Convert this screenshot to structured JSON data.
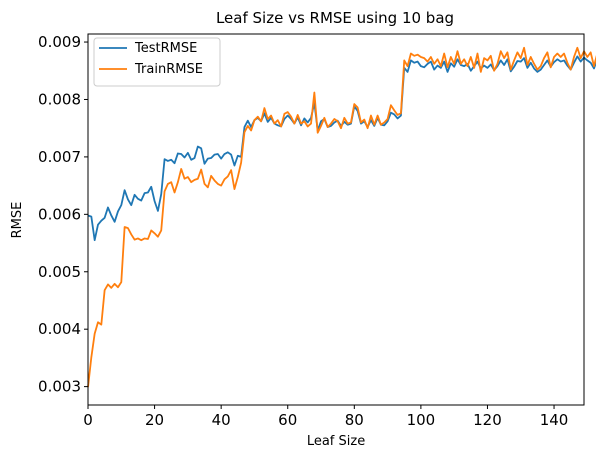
{
  "chart_data": {
    "type": "line",
    "title": "Leaf Size vs RMSE using 10 bag",
    "xlabel": "Leaf Size",
    "ylabel": "RMSE",
    "xlim": [
      0,
      149
    ],
    "ylim": [
      0.00268,
      0.00914
    ],
    "xticks": [
      0,
      20,
      40,
      60,
      80,
      100,
      120,
      140
    ],
    "yticks": [
      0.003,
      0.004,
      0.005,
      0.006,
      0.007,
      0.008,
      0.009
    ],
    "ytick_labels": [
      "0.003",
      "0.004",
      "0.005",
      "0.006",
      "0.007",
      "0.008",
      "0.009"
    ],
    "legend_position": "upper-left",
    "grid": false,
    "series": [
      {
        "name": "TestRMSE",
        "color": "#1f77b4",
        "values": [
          0.00598,
          0.00596,
          0.00555,
          0.00582,
          0.00589,
          0.00594,
          0.00612,
          0.00598,
          0.00587,
          0.00605,
          0.00616,
          0.00642,
          0.00626,
          0.00616,
          0.00634,
          0.00627,
          0.00624,
          0.00637,
          0.00638,
          0.00648,
          0.00623,
          0.00606,
          0.00635,
          0.00696,
          0.00693,
          0.00695,
          0.00689,
          0.00706,
          0.00705,
          0.00699,
          0.00707,
          0.00695,
          0.00698,
          0.00718,
          0.00715,
          0.00688,
          0.00697,
          0.00698,
          0.00704,
          0.00705,
          0.00697,
          0.00705,
          0.00708,
          0.00704,
          0.00685,
          0.00702,
          0.007,
          0.00752,
          0.00763,
          0.00752,
          0.00764,
          0.00768,
          0.00762,
          0.00776,
          0.00761,
          0.00768,
          0.00758,
          0.00755,
          0.00753,
          0.00766,
          0.00772,
          0.00766,
          0.00758,
          0.00769,
          0.00755,
          0.00767,
          0.0076,
          0.00768,
          0.00794,
          0.00746,
          0.00762,
          0.00766,
          0.00752,
          0.00754,
          0.0076,
          0.00763,
          0.00754,
          0.00761,
          0.00756,
          0.00758,
          0.00788,
          0.0078,
          0.00758,
          0.00762,
          0.00752,
          0.00764,
          0.00754,
          0.00768,
          0.00756,
          0.00755,
          0.00762,
          0.00777,
          0.00774,
          0.00767,
          0.00772,
          0.00855,
          0.00848,
          0.00868,
          0.00864,
          0.00866,
          0.00858,
          0.00856,
          0.00862,
          0.00866,
          0.00852,
          0.00859,
          0.00855,
          0.00866,
          0.00848,
          0.00863,
          0.00857,
          0.0087,
          0.0086,
          0.00858,
          0.00862,
          0.0085,
          0.00858,
          0.00866,
          0.00854,
          0.00859,
          0.00855,
          0.00861,
          0.00851,
          0.00858,
          0.00868,
          0.0086,
          0.0087,
          0.00849,
          0.00857,
          0.00867,
          0.00866,
          0.00872,
          0.00855,
          0.00864,
          0.00854,
          0.00848,
          0.00852,
          0.0086,
          0.00868,
          0.00857,
          0.00865,
          0.0087,
          0.00866,
          0.00868,
          0.00859,
          0.00852,
          0.00864,
          0.00875,
          0.00866,
          0.00873,
          0.00868,
          0.00864,
          0.00854,
          0.0087,
          0.00858,
          0.00843,
          0.00854,
          0.00857
        ]
      },
      {
        "name": "TrainRMSE",
        "color": "#ff7f0e",
        "values": [
          0.00299,
          0.00351,
          0.00392,
          0.00412,
          0.00408,
          0.00468,
          0.00478,
          0.00472,
          0.00479,
          0.00473,
          0.00482,
          0.00578,
          0.00576,
          0.00565,
          0.00556,
          0.00558,
          0.00555,
          0.00558,
          0.00557,
          0.00572,
          0.00567,
          0.00561,
          0.00572,
          0.0064,
          0.00653,
          0.00656,
          0.00638,
          0.00656,
          0.00679,
          0.00662,
          0.00665,
          0.00656,
          0.0066,
          0.00662,
          0.00678,
          0.00653,
          0.00647,
          0.00667,
          0.00659,
          0.00653,
          0.0065,
          0.00661,
          0.00666,
          0.00677,
          0.00644,
          0.00665,
          0.0069,
          0.00743,
          0.00754,
          0.00746,
          0.00764,
          0.0077,
          0.00762,
          0.00785,
          0.00766,
          0.00772,
          0.00758,
          0.00764,
          0.00753,
          0.00775,
          0.00778,
          0.0077,
          0.00758,
          0.00773,
          0.00758,
          0.00762,
          0.00753,
          0.00758,
          0.00812,
          0.00742,
          0.00754,
          0.00768,
          0.00752,
          0.00758,
          0.00766,
          0.00762,
          0.0075,
          0.00768,
          0.00758,
          0.0076,
          0.00792,
          0.00786,
          0.0076,
          0.00765,
          0.0075,
          0.00772,
          0.00756,
          0.00772,
          0.00756,
          0.0076,
          0.00766,
          0.0079,
          0.00781,
          0.00773,
          0.00776,
          0.00868,
          0.00858,
          0.0088,
          0.00876,
          0.00878,
          0.00874,
          0.00872,
          0.00866,
          0.00874,
          0.00862,
          0.0087,
          0.00858,
          0.0088,
          0.00856,
          0.00874,
          0.00862,
          0.00884,
          0.00862,
          0.0087,
          0.00858,
          0.00874,
          0.00855,
          0.0088,
          0.00848,
          0.00872,
          0.00868,
          0.00876,
          0.0085,
          0.00862,
          0.00884,
          0.00872,
          0.00882,
          0.00852,
          0.00868,
          0.00882,
          0.00872,
          0.0089,
          0.0086,
          0.00874,
          0.00862,
          0.00852,
          0.00858,
          0.00872,
          0.00882,
          0.00856,
          0.00874,
          0.0088,
          0.00874,
          0.0088,
          0.00864,
          0.00852,
          0.00874,
          0.0089,
          0.00872,
          0.00884,
          0.00874,
          0.00882,
          0.00858,
          0.0088,
          0.00865,
          0.00848,
          0.00858,
          0.00862
        ]
      }
    ]
  }
}
